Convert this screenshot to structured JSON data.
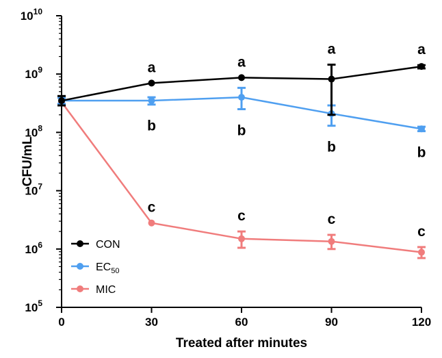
{
  "chart_data": {
    "type": "line",
    "title": "",
    "xlabel": "Treated after minutes",
    "ylabel": "CFU/mL",
    "yscale": "log",
    "ylim": [
      100000,
      10000000000
    ],
    "xlim": [
      0,
      120
    ],
    "x": [
      0,
      30,
      60,
      90,
      120
    ],
    "xticks": [
      "0",
      "30",
      "60",
      "90",
      "120"
    ],
    "yticks": [
      {
        "base": "10",
        "exp": "5",
        "value": 100000
      },
      {
        "base": "10",
        "exp": "6",
        "value": 1000000
      },
      {
        "base": "10",
        "exp": "7",
        "value": 10000000
      },
      {
        "base": "10",
        "exp": "8",
        "value": 100000000
      },
      {
        "base": "10",
        "exp": "9",
        "value": 1000000000
      },
      {
        "base": "10",
        "exp": "10",
        "value": 10000000000
      }
    ],
    "series": [
      {
        "name": "CON",
        "legend_main": "CON",
        "legend_sub": "",
        "color": "#000000",
        "values": [
          350000000,
          700000000,
          870000000,
          820000000,
          1350000000
        ],
        "err_low": [
          290000000,
          700000000,
          870000000,
          200000000,
          1250000000
        ],
        "err_high": [
          420000000,
          700000000,
          870000000,
          1450000000,
          1420000000
        ],
        "letters": [
          "",
          "a",
          "a",
          "a",
          "a"
        ],
        "letter_pos": "above"
      },
      {
        "name": "EC50",
        "legend_main": "EC",
        "legend_sub": "50",
        "color": "#4f9ff0",
        "values": [
          350000000,
          350000000,
          400000000,
          210000000,
          115000000
        ],
        "err_low": [
          310000000,
          300000000,
          250000000,
          130000000,
          105000000
        ],
        "err_high": [
          390000000,
          400000000,
          580000000,
          290000000,
          125000000
        ],
        "letters": [
          "",
          "b",
          "b",
          "b",
          "b"
        ],
        "letter_pos": "below"
      },
      {
        "name": "MIC",
        "legend_main": "MIC",
        "legend_sub": "",
        "color": "#f07c7c",
        "values": [
          330000000,
          2800000,
          1500000,
          1350000,
          880000
        ],
        "err_low": [
          330000000,
          2800000,
          1050000,
          1000000,
          700000
        ],
        "err_high": [
          330000000,
          2800000,
          2000000,
          1750000,
          1080000
        ],
        "letters": [
          "",
          "c",
          "c",
          "c",
          "c"
        ],
        "letter_pos": "above"
      }
    ],
    "legend_position": "bottom-left"
  }
}
